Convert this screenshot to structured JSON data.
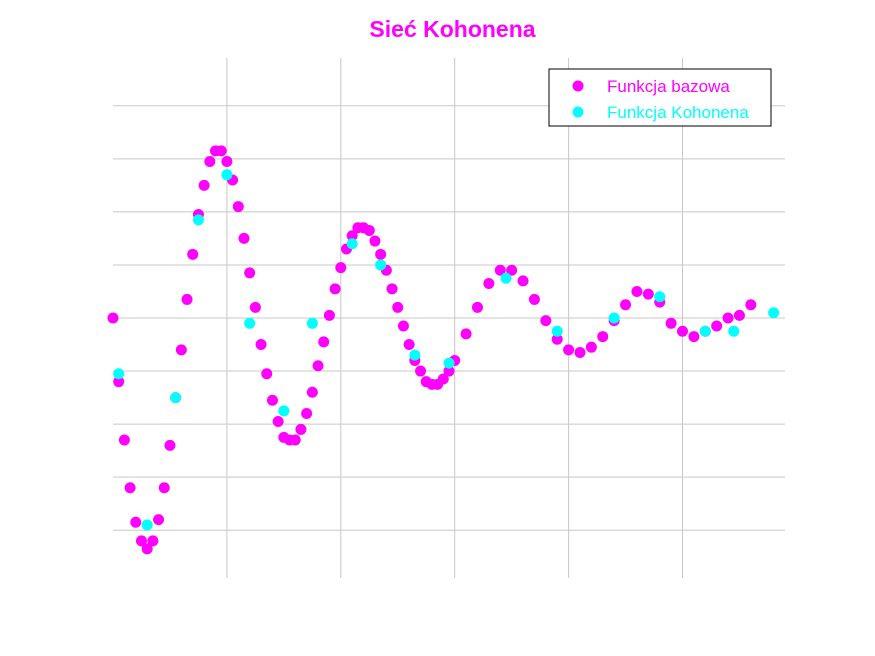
{
  "chart_data": {
    "type": "scatter",
    "title": "Sieć Kohonena",
    "xlabel": "",
    "ylabel": "",
    "xlim": [
      0,
      5.9
    ],
    "ylim": [
      -0.98,
      0.98
    ],
    "x_gridlines": [
      1,
      2,
      3,
      4,
      5
    ],
    "y_gridlines": [
      -0.8,
      -0.6,
      -0.4,
      -0.2,
      0,
      0.2,
      0.4,
      0.6,
      0.8
    ],
    "grid": true,
    "tick_labels_visible": false,
    "legend_position": "top-right",
    "colors": {
      "title": "#ff00ff",
      "grid": "#c8c8c8",
      "legend_border": "#000000"
    },
    "series": [
      {
        "name": "Funkcja bazowa",
        "color": "#ff00ff",
        "points": [
          [
            0.0,
            0.0
          ],
          [
            0.05,
            -0.24
          ],
          [
            0.1,
            -0.46
          ],
          [
            0.15,
            -0.64
          ],
          [
            0.2,
            -0.77
          ],
          [
            0.25,
            -0.84
          ],
          [
            0.3,
            -0.87
          ],
          [
            0.35,
            -0.84
          ],
          [
            0.4,
            -0.76
          ],
          [
            0.45,
            -0.64
          ],
          [
            0.5,
            -0.48
          ],
          [
            0.55,
            -0.3
          ],
          [
            0.6,
            -0.12
          ],
          [
            0.65,
            0.07
          ],
          [
            0.7,
            0.24
          ],
          [
            0.75,
            0.39
          ],
          [
            0.8,
            0.5
          ],
          [
            0.85,
            0.59
          ],
          [
            0.9,
            0.63
          ],
          [
            0.95,
            0.63
          ],
          [
            1.0,
            0.59
          ],
          [
            1.05,
            0.52
          ],
          [
            1.1,
            0.42
          ],
          [
            1.15,
            0.3
          ],
          [
            1.2,
            0.17
          ],
          [
            1.25,
            0.04
          ],
          [
            1.3,
            -0.1
          ],
          [
            1.35,
            -0.21
          ],
          [
            1.4,
            -0.31
          ],
          [
            1.45,
            -0.39
          ],
          [
            1.5,
            -0.45
          ],
          [
            1.55,
            -0.46
          ],
          [
            1.6,
            -0.46
          ],
          [
            1.65,
            -0.42
          ],
          [
            1.7,
            -0.36
          ],
          [
            1.75,
            -0.28
          ],
          [
            1.8,
            -0.18
          ],
          [
            1.85,
            -0.09
          ],
          [
            1.9,
            0.01
          ],
          [
            1.95,
            0.11
          ],
          [
            2.0,
            0.19
          ],
          [
            2.05,
            0.26
          ],
          [
            2.1,
            0.31
          ],
          [
            2.15,
            0.34
          ],
          [
            2.2,
            0.34
          ],
          [
            2.25,
            0.33
          ],
          [
            2.3,
            0.29
          ],
          [
            2.35,
            0.24
          ],
          [
            2.4,
            0.18
          ],
          [
            2.45,
            0.11
          ],
          [
            2.5,
            0.04
          ],
          [
            2.55,
            -0.03
          ],
          [
            2.6,
            -0.1
          ],
          [
            2.65,
            -0.16
          ],
          [
            2.7,
            -0.2
          ],
          [
            2.75,
            -0.24
          ],
          [
            2.8,
            -0.25
          ],
          [
            2.85,
            -0.25
          ],
          [
            2.9,
            -0.23
          ],
          [
            2.95,
            -0.2
          ],
          [
            3.0,
            -0.16
          ],
          [
            3.1,
            -0.06
          ],
          [
            3.2,
            0.04
          ],
          [
            3.3,
            0.13
          ],
          [
            3.4,
            0.18
          ],
          [
            3.5,
            0.18
          ],
          [
            3.6,
            0.14
          ],
          [
            3.7,
            0.07
          ],
          [
            3.8,
            -0.01
          ],
          [
            3.9,
            -0.08
          ],
          [
            4.0,
            -0.12
          ],
          [
            4.1,
            -0.13
          ],
          [
            4.2,
            -0.11
          ],
          [
            4.3,
            -0.07
          ],
          [
            4.4,
            -0.01
          ],
          [
            4.5,
            0.05
          ],
          [
            4.6,
            0.1
          ],
          [
            4.7,
            0.09
          ],
          [
            4.8,
            0.06
          ],
          [
            4.9,
            -0.02
          ],
          [
            5.0,
            -0.05
          ],
          [
            5.1,
            -0.07
          ],
          [
            5.2,
            -0.05
          ],
          [
            5.3,
            -0.03
          ],
          [
            5.4,
            0.0
          ],
          [
            5.5,
            0.01
          ],
          [
            5.6,
            0.05
          ]
        ]
      },
      {
        "name": "Funkcja Kohonena",
        "color": "#00ffff",
        "points": [
          [
            0.05,
            -0.21
          ],
          [
            0.3,
            -0.78
          ],
          [
            0.55,
            -0.3
          ],
          [
            0.75,
            0.37
          ],
          [
            1.0,
            0.54
          ],
          [
            1.2,
            -0.02
          ],
          [
            1.5,
            -0.35
          ],
          [
            1.75,
            -0.02
          ],
          [
            2.1,
            0.28
          ],
          [
            2.35,
            0.2
          ],
          [
            2.65,
            -0.14
          ],
          [
            2.95,
            -0.17
          ],
          [
            3.45,
            0.15
          ],
          [
            3.9,
            -0.05
          ],
          [
            4.4,
            0.0
          ],
          [
            4.8,
            0.08
          ],
          [
            5.2,
            -0.05
          ],
          [
            5.45,
            -0.05
          ],
          [
            5.8,
            0.02
          ]
        ]
      }
    ]
  }
}
